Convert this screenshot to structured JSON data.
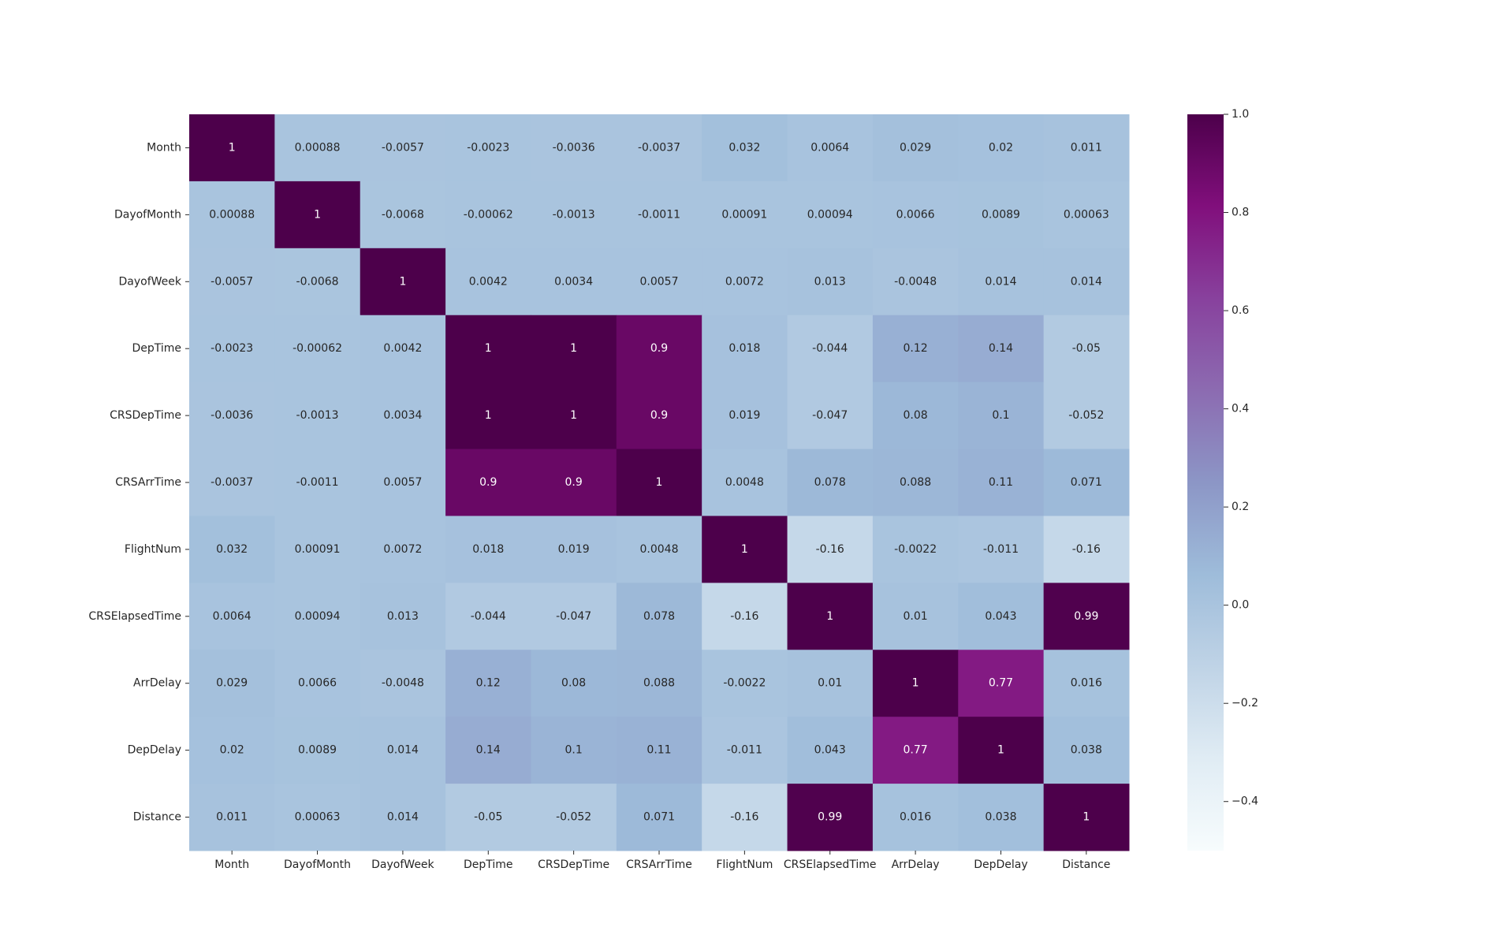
{
  "chart_data": {
    "type": "heatmap",
    "title": "",
    "xlabel": "",
    "ylabel": "",
    "x_categories": [
      "Month",
      "DayofMonth",
      "DayofWeek",
      "DepTime",
      "CRSDepTime",
      "CRSArrTime",
      "FlightNum",
      "CRSElapsedTime",
      "ArrDelay",
      "DepDelay",
      "Distance"
    ],
    "y_categories": [
      "Month",
      "DayofMonth",
      "DayofWeek",
      "DepTime",
      "CRSDepTime",
      "CRSArrTime",
      "FlightNum",
      "CRSElapsedTime",
      "ArrDelay",
      "DepDelay",
      "Distance"
    ],
    "values": [
      [
        1,
        0.00088,
        -0.0057,
        -0.0023,
        -0.0036,
        -0.0037,
        0.032,
        0.0064,
        0.029,
        0.02,
        0.011
      ],
      [
        0.00088,
        1,
        -0.0068,
        -0.00062,
        -0.0013,
        -0.0011,
        0.00091,
        0.00094,
        0.0066,
        0.0089,
        0.00063
      ],
      [
        -0.0057,
        -0.0068,
        1,
        0.0042,
        0.0034,
        0.0057,
        0.0072,
        0.013,
        -0.0048,
        0.014,
        0.014
      ],
      [
        -0.0023,
        -0.00062,
        0.0042,
        1,
        1,
        0.9,
        0.018,
        -0.044,
        0.12,
        0.14,
        -0.05
      ],
      [
        -0.0036,
        -0.0013,
        0.0034,
        1,
        1,
        0.9,
        0.019,
        -0.047,
        0.08,
        0.1,
        -0.052
      ],
      [
        -0.0037,
        -0.0011,
        0.0057,
        0.9,
        0.9,
        1,
        0.0048,
        0.078,
        0.088,
        0.11,
        0.071
      ],
      [
        0.032,
        0.00091,
        0.0072,
        0.018,
        0.019,
        0.0048,
        1,
        -0.16,
        -0.0022,
        -0.011,
        -0.16
      ],
      [
        0.0064,
        0.00094,
        0.013,
        -0.044,
        -0.047,
        0.078,
        -0.16,
        1,
        0.01,
        0.043,
        0.99
      ],
      [
        0.029,
        0.0066,
        -0.0048,
        0.12,
        0.08,
        0.088,
        -0.0022,
        0.01,
        1,
        0.77,
        0.016
      ],
      [
        0.02,
        0.0089,
        0.014,
        0.14,
        0.1,
        0.11,
        -0.011,
        0.043,
        0.77,
        1,
        0.038
      ],
      [
        0.011,
        0.00063,
        0.014,
        -0.05,
        -0.052,
        0.071,
        -0.16,
        0.99,
        0.016,
        0.038,
        1
      ]
    ],
    "colormap": "BuPu",
    "vmin": -0.5,
    "vmax": 1.0,
    "colorbar_ticks": [
      1.0,
      0.8,
      0.6,
      0.4,
      0.2,
      0.0,
      -0.2,
      -0.4
    ],
    "colorbar_tick_labels": [
      "1.0",
      "0.8",
      "0.6",
      "0.4",
      "0.2",
      "0.0",
      "−0.2",
      "−0.4"
    ],
    "annotations": true,
    "grid": false,
    "legend": "colorbar-right"
  }
}
